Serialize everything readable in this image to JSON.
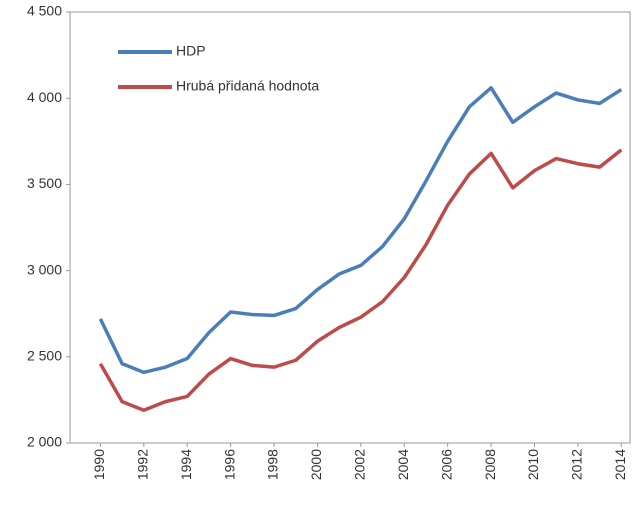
{
  "chart_data": {
    "type": "line",
    "x": [
      1990,
      1991,
      1992,
      1993,
      1994,
      1995,
      1996,
      1997,
      1998,
      1999,
      2000,
      2001,
      2002,
      2003,
      2004,
      2005,
      2006,
      2007,
      2008,
      2009,
      2010,
      2011,
      2012,
      2013,
      2014
    ],
    "series": [
      {
        "name": "HDP",
        "color": "#4a7ebb",
        "values": [
          2720,
          2460,
          2410,
          2440,
          2490,
          2640,
          2760,
          2745,
          2740,
          2780,
          2890,
          2980,
          3030,
          3140,
          3300,
          3520,
          3750,
          3950,
          4060,
          3860,
          3950,
          4030,
          3990,
          3970,
          4050
        ]
      },
      {
        "name": "Hrubá přidaná hodnota",
        "color": "#be4b48",
        "values": [
          2460,
          2240,
          2190,
          2240,
          2270,
          2400,
          2490,
          2450,
          2440,
          2480,
          2590,
          2670,
          2730,
          2820,
          2960,
          3150,
          3380,
          3560,
          3680,
          3480,
          3580,
          3650,
          3620,
          3600,
          3700
        ]
      }
    ],
    "xlim": [
      1988.6,
      2014.4
    ],
    "xticks": [
      1990,
      1992,
      1994,
      1996,
      1998,
      2000,
      2002,
      2004,
      2006,
      2008,
      2010,
      2012,
      2014
    ],
    "ylim": [
      2000,
      4500
    ],
    "yticks": [
      {
        "value": 2000,
        "label": "2 000"
      },
      {
        "value": 2500,
        "label": "2 500"
      },
      {
        "value": 3000,
        "label": "3 000"
      },
      {
        "value": 3500,
        "label": "3 500"
      },
      {
        "value": 4000,
        "label": "4 000"
      },
      {
        "value": 4500,
        "label": "4 500"
      }
    ],
    "legend": "top-left"
  }
}
